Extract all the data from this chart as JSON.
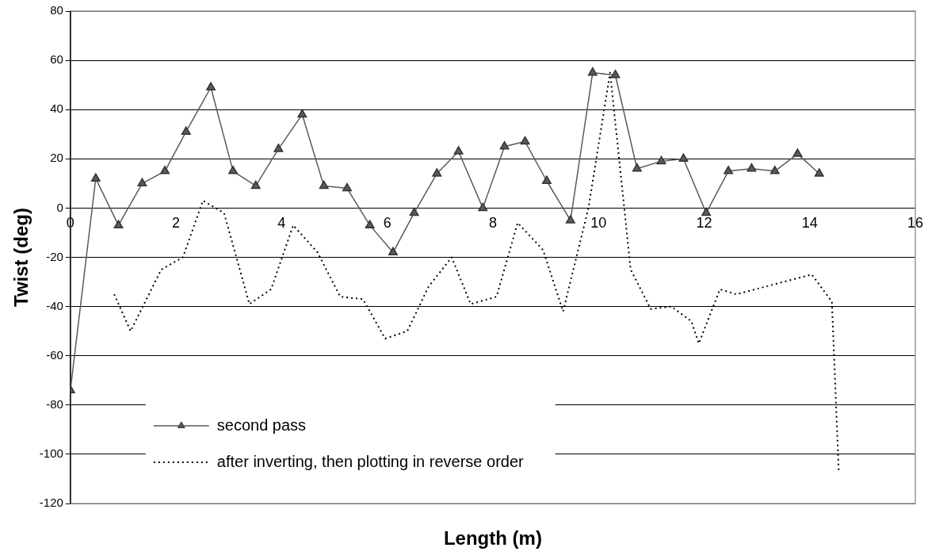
{
  "chart_data": {
    "type": "line",
    "xlabel": "Length (m)",
    "ylabel": "Twist (deg)",
    "xlim": [
      0,
      16
    ],
    "xticks": [
      0,
      2,
      4,
      6,
      8,
      10,
      12,
      14,
      16
    ],
    "ylim": [
      -120,
      80
    ],
    "yticks": [
      -120,
      -100,
      -80,
      -60,
      -40,
      -20,
      0,
      20,
      40,
      60,
      80
    ],
    "grid": "y",
    "legend": "bottom left",
    "series": [
      {
        "name": "second pass",
        "color": "#5a5a5a",
        "marker": "triangle",
        "line_style": "solid",
        "x": [
          0,
          0.48,
          0.91,
          1.36,
          1.79,
          2.19,
          2.66,
          3.08,
          3.51,
          3.94,
          4.39,
          4.8,
          5.24,
          5.67,
          6.11,
          6.51,
          6.94,
          7.35,
          7.81,
          8.22,
          8.61,
          9.02,
          9.47,
          9.89,
          10.32,
          10.73,
          11.19,
          11.61,
          12.04,
          12.46,
          12.9,
          13.34,
          13.77,
          14.18
        ],
        "values": [
          -74,
          12,
          -7,
          10,
          15,
          31,
          49,
          15,
          9,
          24,
          38,
          9,
          8,
          -7,
          -18,
          -2,
          14,
          23,
          0,
          25,
          27,
          11,
          -5,
          55,
          54,
          16,
          19,
          20,
          -2,
          15,
          16,
          15,
          22,
          14
        ]
      },
      {
        "name": "after inverting, then plotting in reverse order",
        "color": "#000000",
        "marker": "none",
        "line_style": "dotted",
        "x": [
          0.83,
          1.14,
          1.72,
          2.13,
          2.51,
          2.91,
          3.39,
          3.8,
          4.22,
          4.68,
          5.11,
          5.54,
          5.96,
          6.38,
          6.78,
          7.22,
          7.58,
          8.07,
          8.47,
          8.95,
          9.33,
          9.81,
          10.22,
          10.61,
          10.99,
          11.38,
          11.76,
          11.9,
          12.3,
          12.61,
          14.04,
          14.42,
          14.55
        ],
        "values": [
          -35,
          -50,
          -25,
          -20,
          3,
          -2,
          -39,
          -33,
          -7,
          -18,
          -36,
          -37,
          -53,
          -50,
          -32,
          -20,
          -39,
          -36,
          -6,
          -17,
          -42,
          0,
          55,
          -25,
          -41,
          -40,
          -46,
          -55,
          -33,
          -35,
          -27,
          -38,
          -107
        ]
      }
    ]
  }
}
